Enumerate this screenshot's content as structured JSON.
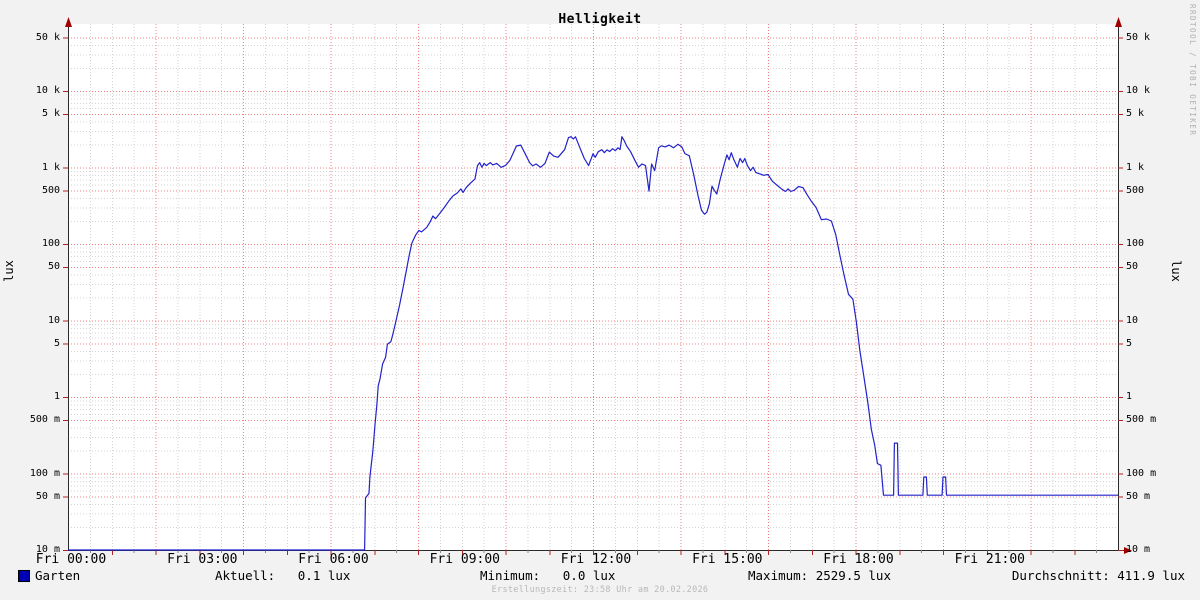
{
  "title": "Helligkeit",
  "watermark": "RRDTOOL / TOBI OETIKER",
  "y_axis_label_left": "lux",
  "y_axis_label_right": "lux",
  "legend": {
    "series_label": "Garten"
  },
  "stats_display": {
    "aktuell": "Aktuell:   0.1 lux",
    "minimum": "Minimum:   0.0 lux",
    "maximum": "Maximum: 2529.5 lux",
    "durchschnitt": "Durchschnitt: 411.9 lux"
  },
  "footer": "Erstellungszeit: 23:58 Uhr am 20.02.2026",
  "colors": {
    "background": "#f2f2f2",
    "plot_background": "#ffffff",
    "grid_major": "#f08080",
    "grid_minor": "#d4d4d4",
    "axis": "#2a2a2a",
    "arrow": "#a00000",
    "tick_major": "#b22222",
    "tick_minor": "#888888",
    "line": "#2222cc",
    "legend_swatch": "#0000b4"
  },
  "chart_data": {
    "type": "line",
    "title": "Helligkeit",
    "ylabel": "lux",
    "y_scale": "log",
    "ylim": [
      0.01,
      57000
    ],
    "x_unit": "hours",
    "xlim": [
      0,
      24
    ],
    "grid": true,
    "legend_position": "bottom",
    "y_ticks": [
      {
        "v": 50000,
        "label": "50 k"
      },
      {
        "v": 10000,
        "label": "10 k"
      },
      {
        "v": 5000,
        "label": "5 k"
      },
      {
        "v": 1000,
        "label": "1 k"
      },
      {
        "v": 500,
        "label": "500"
      },
      {
        "v": 100,
        "label": "100"
      },
      {
        "v": 50,
        "label": "50"
      },
      {
        "v": 10,
        "label": "10"
      },
      {
        "v": 5,
        "label": "5"
      },
      {
        "v": 1,
        "label": "1"
      },
      {
        "v": 0.5,
        "label": "500 m"
      },
      {
        "v": 0.1,
        "label": "100 m"
      },
      {
        "v": 0.05,
        "label": "50 m"
      },
      {
        "v": 0.01,
        "label": "10 m"
      }
    ],
    "x_ticks": [
      {
        "h": 0,
        "label": "Fri 00:00"
      },
      {
        "h": 3,
        "label": "Fri 03:00"
      },
      {
        "h": 6,
        "label": "Fri 06:00"
      },
      {
        "h": 9,
        "label": "Fri 09:00"
      },
      {
        "h": 12,
        "label": "Fri 12:00"
      },
      {
        "h": 15,
        "label": "Fri 15:00"
      },
      {
        "h": 18,
        "label": "Fri 18:00"
      },
      {
        "h": 21,
        "label": "Fri 21:00"
      }
    ],
    "stats": {
      "aktuell_lux": 0.1,
      "minimum_lux": 0.0,
      "maximum_lux": 2529.5,
      "durchschnitt_lux": 411.9
    },
    "series": [
      {
        "name": "Garten",
        "color": "#2222cc",
        "points": [
          [
            0,
            0.01
          ],
          [
            6.78,
            0.01
          ],
          [
            6.8,
            0.048
          ],
          [
            6.88,
            0.055
          ],
          [
            6.9,
            0.09
          ],
          [
            6.97,
            0.2
          ],
          [
            7.02,
            0.45
          ],
          [
            7.06,
            0.8
          ],
          [
            7.09,
            1.4
          ],
          [
            7.13,
            1.7
          ],
          [
            7.19,
            2.7
          ],
          [
            7.26,
            3.3
          ],
          [
            7.3,
            4.9
          ],
          [
            7.38,
            5.3
          ],
          [
            7.43,
            6.8
          ],
          [
            7.5,
            10
          ],
          [
            7.58,
            16
          ],
          [
            7.66,
            27
          ],
          [
            7.73,
            44
          ],
          [
            7.8,
            72
          ],
          [
            7.86,
            103
          ],
          [
            7.95,
            132
          ],
          [
            8.02,
            150
          ],
          [
            8.08,
            144
          ],
          [
            8.2,
            165
          ],
          [
            8.28,
            196
          ],
          [
            8.34,
            232
          ],
          [
            8.4,
            214
          ],
          [
            8.5,
            252
          ],
          [
            8.6,
            300
          ],
          [
            8.7,
            362
          ],
          [
            8.8,
            425
          ],
          [
            8.9,
            465
          ],
          [
            8.98,
            525
          ],
          [
            9.03,
            472
          ],
          [
            9.1,
            545
          ],
          [
            9.2,
            625
          ],
          [
            9.3,
            705
          ],
          [
            9.36,
            1060
          ],
          [
            9.41,
            1160
          ],
          [
            9.46,
            1010
          ],
          [
            9.51,
            1130
          ],
          [
            9.56,
            1060
          ],
          [
            9.65,
            1160
          ],
          [
            9.71,
            1080
          ],
          [
            9.8,
            1130
          ],
          [
            9.9,
            1005
          ],
          [
            10,
            1065
          ],
          [
            10.1,
            1240
          ],
          [
            10.25,
            1910
          ],
          [
            10.35,
            1965
          ],
          [
            10.45,
            1510
          ],
          [
            10.55,
            1160
          ],
          [
            10.62,
            1050
          ],
          [
            10.7,
            1110
          ],
          [
            10.8,
            1005
          ],
          [
            10.9,
            1125
          ],
          [
            11,
            1590
          ],
          [
            11.1,
            1410
          ],
          [
            11.2,
            1360
          ],
          [
            11.35,
            1710
          ],
          [
            11.44,
            2460
          ],
          [
            11.5,
            2530
          ],
          [
            11.55,
            2360
          ],
          [
            11.6,
            2520
          ],
          [
            11.7,
            1810
          ],
          [
            11.8,
            1310
          ],
          [
            11.9,
            1060
          ],
          [
            12,
            1510
          ],
          [
            12.05,
            1360
          ],
          [
            12.12,
            1610
          ],
          [
            12.2,
            1710
          ],
          [
            12.26,
            1560
          ],
          [
            12.32,
            1700
          ],
          [
            12.38,
            1620
          ],
          [
            12.45,
            1760
          ],
          [
            12.51,
            1660
          ],
          [
            12.57,
            1810
          ],
          [
            12.62,
            1720
          ],
          [
            12.66,
            2530
          ],
          [
            12.71,
            2260
          ],
          [
            12.77,
            1910
          ],
          [
            12.86,
            1610
          ],
          [
            12.95,
            1260
          ],
          [
            13.04,
            1010
          ],
          [
            13.12,
            1110
          ],
          [
            13.2,
            1060
          ],
          [
            13.28,
            490
          ],
          [
            13.34,
            1110
          ],
          [
            13.41,
            910
          ],
          [
            13.5,
            1810
          ],
          [
            13.56,
            1920
          ],
          [
            13.65,
            1860
          ],
          [
            13.74,
            1960
          ],
          [
            13.84,
            1810
          ],
          [
            13.94,
            2010
          ],
          [
            14.03,
            1860
          ],
          [
            14.1,
            1520
          ],
          [
            14.2,
            1420
          ],
          [
            14.3,
            820
          ],
          [
            14.4,
            430
          ],
          [
            14.48,
            275
          ],
          [
            14.55,
            245
          ],
          [
            14.6,
            260
          ],
          [
            14.66,
            335
          ],
          [
            14.72,
            570
          ],
          [
            14.77,
            505
          ],
          [
            14.83,
            450
          ],
          [
            14.91,
            710
          ],
          [
            15,
            1110
          ],
          [
            15.06,
            1460
          ],
          [
            15.11,
            1260
          ],
          [
            15.16,
            1560
          ],
          [
            15.22,
            1260
          ],
          [
            15.3,
            1010
          ],
          [
            15.36,
            1310
          ],
          [
            15.42,
            1160
          ],
          [
            15.47,
            1310
          ],
          [
            15.53,
            1060
          ],
          [
            15.6,
            910
          ],
          [
            15.66,
            1010
          ],
          [
            15.72,
            860
          ],
          [
            15.8,
            830
          ],
          [
            15.9,
            790
          ],
          [
            16,
            810
          ],
          [
            16.1,
            660
          ],
          [
            16.2,
            590
          ],
          [
            16.3,
            530
          ],
          [
            16.4,
            485
          ],
          [
            16.46,
            525
          ],
          [
            16.52,
            485
          ],
          [
            16.6,
            505
          ],
          [
            16.7,
            565
          ],
          [
            16.8,
            545
          ],
          [
            16.9,
            435
          ],
          [
            17,
            355
          ],
          [
            17.1,
            300
          ],
          [
            17.22,
            208
          ],
          [
            17.34,
            212
          ],
          [
            17.45,
            200
          ],
          [
            17.55,
            132
          ],
          [
            17.64,
            72
          ],
          [
            17.74,
            39
          ],
          [
            17.84,
            22
          ],
          [
            17.94,
            19
          ],
          [
            18.02,
            9.5
          ],
          [
            18.1,
            4
          ],
          [
            18.2,
            1.7
          ],
          [
            18.28,
            0.85
          ],
          [
            18.36,
            0.38
          ],
          [
            18.44,
            0.23
          ],
          [
            18.5,
            0.135
          ],
          [
            18.58,
            0.128
          ],
          [
            18.64,
            0.052
          ],
          [
            18.87,
            0.052
          ],
          [
            18.89,
            0.25
          ],
          [
            18.96,
            0.25
          ],
          [
            18.98,
            0.052
          ],
          [
            19.54,
            0.052
          ],
          [
            19.56,
            0.09
          ],
          [
            19.62,
            0.09
          ],
          [
            19.64,
            0.052
          ],
          [
            19.98,
            0.052
          ],
          [
            20,
            0.09
          ],
          [
            20.06,
            0.09
          ],
          [
            20.08,
            0.052
          ],
          [
            24,
            0.052
          ]
        ]
      }
    ]
  }
}
